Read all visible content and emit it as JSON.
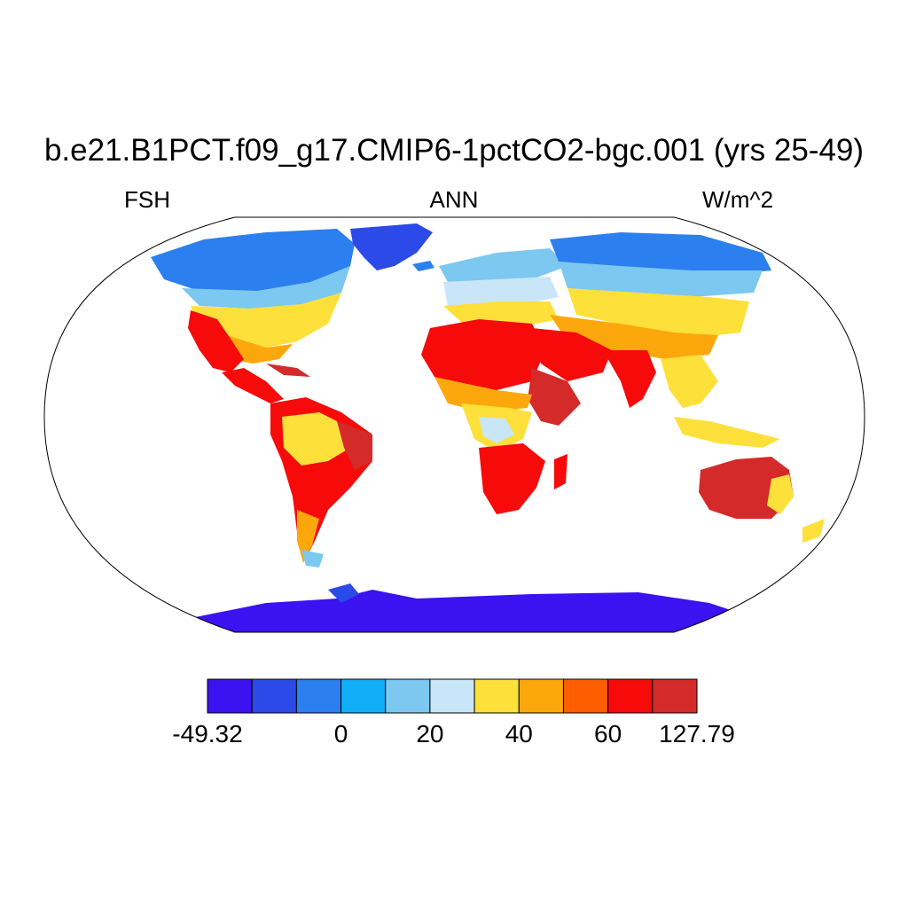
{
  "title": "b.e21.B1PCT.f09_g17.CMIP6-1pctCO2-bgc.001 (yrs 25-49)",
  "subtitle_left": "FSH",
  "subtitle_center": "ANN",
  "subtitle_right": "W/m^2",
  "colorbar": {
    "colors": [
      "#3b12f0",
      "#2b4ae8",
      "#2c7fee",
      "#10aef7",
      "#7cc8f0",
      "#c9e6f8",
      "#fde03a",
      "#fca80d",
      "#fd5f00",
      "#f60a0a",
      "#d42a2a"
    ],
    "labels": [
      {
        "text": "-49.32",
        "boundary": 0
      },
      {
        "text": "0",
        "boundary": 3
      },
      {
        "text": "20",
        "boundary": 5
      },
      {
        "text": "40",
        "boundary": 7
      },
      {
        "text": "60",
        "boundary": 9
      },
      {
        "text": "127.79",
        "boundary": 11
      }
    ]
  },
  "map": {
    "projection": "Robinson",
    "variable": "FSH",
    "colors": {
      "ocean": "#ffffff",
      "coastline": "#000000",
      "frame": "#000000"
    }
  }
}
